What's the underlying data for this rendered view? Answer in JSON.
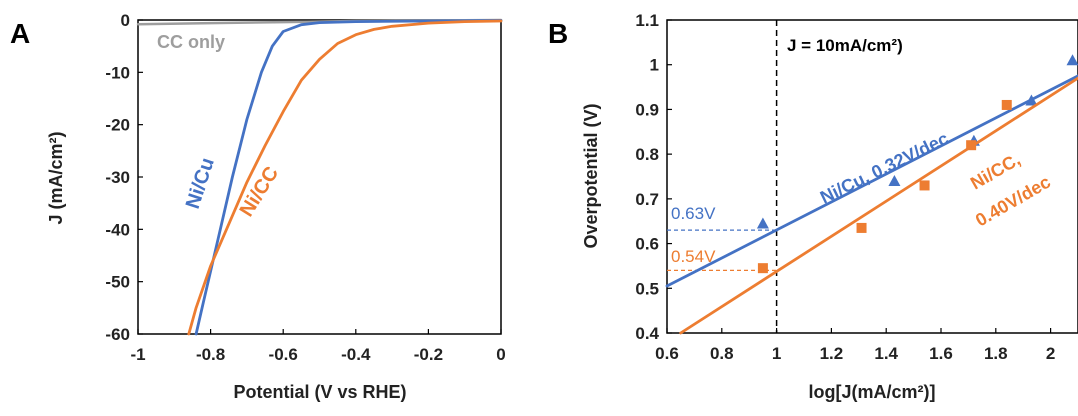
{
  "chart_data": [
    {
      "panel_label": "A",
      "type": "line",
      "xlabel": "Potential (V vs RHE)",
      "ylabel": "J (mA/cm²)",
      "xlim": [
        -1,
        0
      ],
      "ylim": [
        -60,
        0
      ],
      "xticks": [
        "-1",
        "-0.8",
        "-0.6",
        "-0.4",
        "-0.2",
        "0"
      ],
      "yticks": [
        "0",
        "-10",
        "-20",
        "-30",
        "-40",
        "-50",
        "-60"
      ],
      "colors": {
        "cc": "#9e9e9e",
        "nicu": "#4472c4",
        "nicc": "#ed7d31"
      },
      "series": [
        {
          "name": "CC only",
          "color": "#9e9e9e",
          "points": [
            [
              -1.0,
              -0.8
            ],
            [
              -0.8,
              -0.6
            ],
            [
              -0.6,
              -0.4
            ],
            [
              -0.4,
              -0.2
            ],
            [
              -0.2,
              -0.1
            ],
            [
              0.0,
              0.0
            ]
          ]
        },
        {
          "name": "Ni/Cu",
          "color": "#4472c4",
          "points": [
            [
              -0.84,
              -60
            ],
            [
              -0.82,
              -54
            ],
            [
              -0.78,
              -42
            ],
            [
              -0.74,
              -30
            ],
            [
              -0.7,
              -19
            ],
            [
              -0.66,
              -10
            ],
            [
              -0.63,
              -5
            ],
            [
              -0.6,
              -2.2
            ],
            [
              -0.55,
              -0.9
            ],
            [
              -0.5,
              -0.5
            ],
            [
              -0.4,
              -0.3
            ],
            [
              -0.2,
              -0.2
            ],
            [
              0.0,
              -0.1
            ]
          ]
        },
        {
          "name": "Ni/CC",
          "color": "#ed7d31",
          "points": [
            [
              -0.86,
              -60
            ],
            [
              -0.84,
              -55
            ],
            [
              -0.8,
              -47
            ],
            [
              -0.75,
              -39
            ],
            [
              -0.7,
              -31
            ],
            [
              -0.65,
              -24
            ],
            [
              -0.6,
              -17.5
            ],
            [
              -0.55,
              -11.5
            ],
            [
              -0.5,
              -7.5
            ],
            [
              -0.45,
              -4.5
            ],
            [
              -0.4,
              -2.8
            ],
            [
              -0.35,
              -1.8
            ],
            [
              -0.3,
              -1.2
            ],
            [
              -0.2,
              -0.6
            ],
            [
              -0.1,
              -0.3
            ],
            [
              0.0,
              -0.2
            ]
          ]
        }
      ],
      "annotations": [
        "CC only",
        "Ni/Cu",
        "Ni/CC"
      ]
    },
    {
      "panel_label": "B",
      "type": "scatter",
      "xlabel": "log[J(mA/cm²)]",
      "ylabel": "Overpotential (V)",
      "xlim": [
        0.6,
        2.1
      ],
      "ylim": [
        0.4,
        1.1
      ],
      "xticks": [
        "0.6",
        "0.8",
        "1",
        "1.2",
        "1.4",
        "1.6",
        "1.8",
        "2"
      ],
      "yticks": [
        "0.4",
        "0.5",
        "0.6",
        "0.7",
        "0.8",
        "0.9",
        "1",
        "1.1"
      ],
      "vline": {
        "x": 1.0,
        "label": "J = 10mA/cm²)"
      },
      "hlines": [
        {
          "y": 0.63,
          "label": "0.63V",
          "color": "#4472c4"
        },
        {
          "y": 0.54,
          "label": "0.54V",
          "color": "#ed7d31"
        }
      ],
      "series": [
        {
          "name": "Ni/Cu, 0.32V/dec",
          "color": "#4472c4",
          "marker": "triangle",
          "points": [
            [
              0.95,
              0.645
            ],
            [
              1.43,
              0.74
            ],
            [
              1.72,
              0.83
            ],
            [
              1.93,
              0.92
            ],
            [
              2.08,
              1.01
            ]
          ],
          "fit": [
            [
              0.6,
              0.505
            ],
            [
              2.1,
              0.975
            ]
          ]
        },
        {
          "name": "Ni/CC, 0.40V/dec",
          "color": "#ed7d31",
          "marker": "square",
          "points": [
            [
              0.95,
              0.545
            ],
            [
              1.31,
              0.635
            ],
            [
              1.54,
              0.73
            ],
            [
              1.71,
              0.82
            ],
            [
              1.84,
              0.91
            ]
          ],
          "fit": [
            [
              0.65,
              0.4
            ],
            [
              2.1,
              0.97
            ]
          ]
        }
      ],
      "annotations": [
        "Ni/Cu, 0.32V/dec",
        "Ni/CC,",
        "0.40V/dec"
      ]
    }
  ]
}
